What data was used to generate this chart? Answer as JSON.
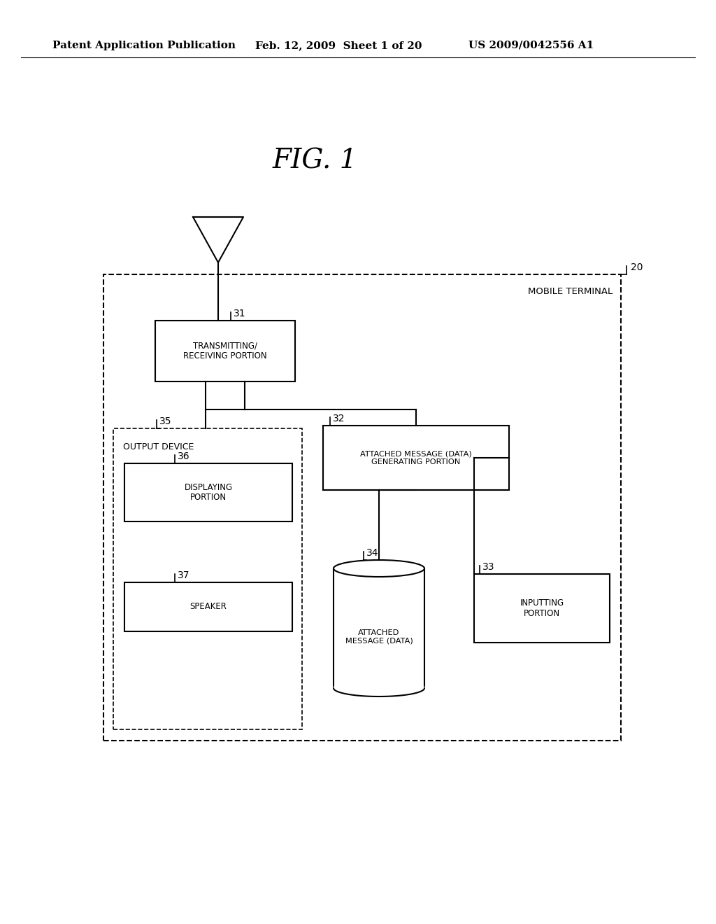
{
  "bg_color": "#ffffff",
  "header_left": "Patent Application Publication",
  "header_mid": "Feb. 12, 2009  Sheet 1 of 20",
  "header_right": "US 2009/0042556 A1",
  "fig_label": "FIG. 1",
  "mobile_terminal_label": "MOBILE TERMINAL",
  "label_20": "20",
  "label_31": "31",
  "label_32": "32",
  "label_33": "33",
  "label_34": "34",
  "label_35": "35",
  "label_36": "36",
  "label_37": "37",
  "box_transmitting": "TRANSMITTING/\nRECEIVING PORTION",
  "box_attached_msg_gen": "ATTACHED MESSAGE (DATA)\nGENERATING PORTION",
  "box_output_device": "OUTPUT DEVICE",
  "box_displaying": "DISPLAYING\nPORTION",
  "box_speaker": "SPEAKER",
  "box_attached_msg": "ATTACHED\nMESSAGE (DATA)",
  "box_inputting": "INPUTTING\nPORTION"
}
